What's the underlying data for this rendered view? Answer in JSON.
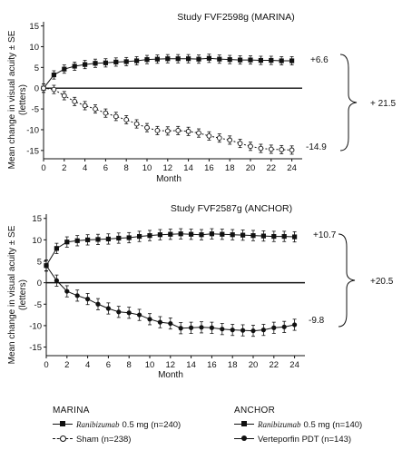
{
  "chart_data": [
    {
      "type": "line",
      "title": "Study FVF2598g (MARINA)",
      "xlabel": "Month",
      "ylabel": "Mean change in visual acuity ± SE",
      "ylabel_unit": "(letters)",
      "xlim": [
        0,
        25
      ],
      "ylim": [
        -17,
        16
      ],
      "xticks": [
        0,
        2,
        4,
        6,
        8,
        10,
        12,
        14,
        16,
        18,
        20,
        22,
        24
      ],
      "yticks": [
        15,
        10,
        5,
        0,
        -5,
        -10,
        -15
      ],
      "reference_line": 0,
      "grid": false,
      "x": [
        0,
        1,
        2,
        3,
        4,
        5,
        6,
        7,
        8,
        9,
        10,
        11,
        12,
        13,
        14,
        15,
        16,
        17,
        18,
        19,
        20,
        21,
        22,
        23,
        24
      ],
      "series": [
        {
          "name": "Ranibizumab 0.5 mg (n=240)",
          "marker": "filled-square",
          "values": [
            0,
            3.2,
            4.6,
            5.3,
            5.7,
            6.0,
            6.1,
            6.3,
            6.4,
            6.6,
            6.9,
            7.0,
            7.1,
            7.1,
            7.1,
            7.0,
            7.2,
            7.0,
            6.9,
            6.8,
            6.8,
            6.7,
            6.7,
            6.6,
            6.6
          ],
          "se": 1.0,
          "end_label": "+6.6"
        },
        {
          "name": "Sham (n=238)",
          "marker": "open-circle",
          "values": [
            0,
            -0.3,
            -1.8,
            -3.2,
            -4.2,
            -5.0,
            -6.0,
            -6.8,
            -7.6,
            -8.6,
            -9.5,
            -10.2,
            -10.3,
            -10.2,
            -10.4,
            -10.8,
            -11.5,
            -12.0,
            -12.5,
            -13.3,
            -14.0,
            -14.5,
            -14.7,
            -14.8,
            -14.9
          ],
          "se": 1.0,
          "end_label": "-14.9"
        }
      ],
      "difference_label": "+ 21.5"
    },
    {
      "type": "line",
      "title": "Study FVF2587g (ANCHOR)",
      "xlabel": "Month",
      "ylabel": "Mean change in visual acuity ± SE",
      "ylabel_unit": "(letters)",
      "xlim": [
        0,
        25
      ],
      "ylim": [
        -17,
        16
      ],
      "xticks": [
        0,
        2,
        4,
        6,
        8,
        10,
        12,
        14,
        16,
        18,
        20,
        22,
        24
      ],
      "yticks": [
        15,
        10,
        5,
        0,
        -5,
        -10,
        -15
      ],
      "reference_line": 0,
      "grid": false,
      "x": [
        0,
        1,
        2,
        3,
        4,
        5,
        6,
        7,
        8,
        9,
        10,
        11,
        12,
        13,
        14,
        15,
        16,
        17,
        18,
        19,
        20,
        21,
        22,
        23,
        24
      ],
      "series": [
        {
          "name": "Ranibizumab 0.5 mg (n=140)",
          "marker": "filled-square",
          "values": [
            4.0,
            8.0,
            9.5,
            9.8,
            10.0,
            10.1,
            10.2,
            10.4,
            10.5,
            10.8,
            11.0,
            11.2,
            11.3,
            11.4,
            11.3,
            11.2,
            11.4,
            11.3,
            11.2,
            11.1,
            11.0,
            10.9,
            10.8,
            10.8,
            10.7
          ],
          "se": 1.2,
          "end_label": "+10.7"
        },
        {
          "name": "Verteporfin PDT (n=143)",
          "marker": "filled-circle",
          "values": [
            4.0,
            0.5,
            -2.0,
            -3.0,
            -3.8,
            -5.0,
            -6.0,
            -6.8,
            -7.0,
            -7.5,
            -8.5,
            -9.2,
            -9.5,
            -10.6,
            -10.5,
            -10.4,
            -10.5,
            -10.8,
            -11.0,
            -11.1,
            -11.2,
            -11.0,
            -10.5,
            -10.3,
            -9.8
          ],
          "se": 1.3,
          "end_label": "-9.8"
        }
      ],
      "difference_label": "+20.5"
    }
  ],
  "legend": {
    "marina": {
      "header": "MARINA",
      "drug_name": "Ranibizumab",
      "item1_rest": "0.5 mg (n=240)",
      "item2": "Sham (n=238)"
    },
    "anchor": {
      "header": "ANCHOR",
      "drug_name": "Ranibizumab",
      "item1_rest": "0.5 mg (n=140)",
      "item2": "Verteporfin PDT (n=143)"
    }
  }
}
